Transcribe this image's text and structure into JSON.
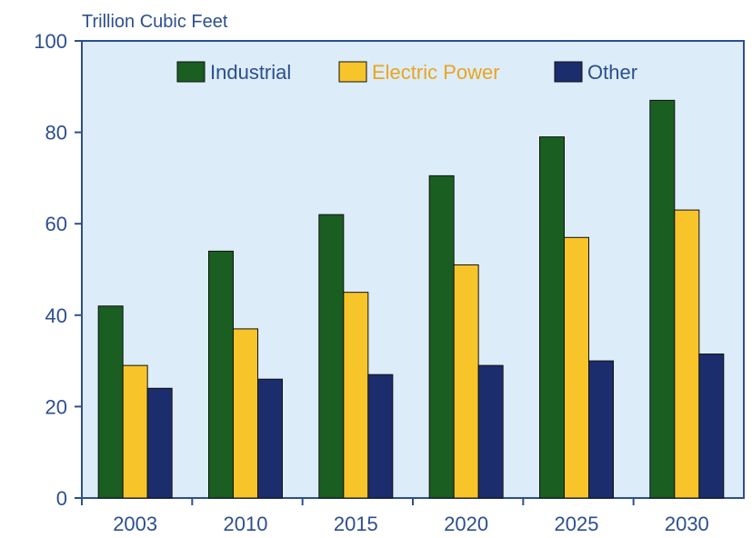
{
  "chart_data": {
    "type": "bar",
    "ylabel": "Trillion Cubic Feet",
    "categories": [
      "2003",
      "2010",
      "2015",
      "2020",
      "2025",
      "2030"
    ],
    "ylim": [
      0,
      100
    ],
    "yticks": [
      "0",
      "20",
      "40",
      "60",
      "80",
      "100"
    ],
    "legend_position": "top",
    "grid": false,
    "series": [
      {
        "name": "Industrial",
        "values": [
          42,
          54,
          62,
          70.5,
          79,
          87
        ],
        "color": "#1a5e22"
      },
      {
        "name": "Electric Power",
        "values": [
          29,
          37,
          45,
          51,
          57,
          63
        ],
        "color": "#f7c42a"
      },
      {
        "name": "Other",
        "values": [
          24,
          26,
          27,
          29,
          30,
          31.5
        ],
        "color": "#1c2d6e"
      }
    ],
    "colors": {
      "plot_background": "#dcecf8",
      "axis": "#2d4f8f",
      "legend_text_electric_power": "#e9a520",
      "text": "#2d4f8f"
    }
  }
}
